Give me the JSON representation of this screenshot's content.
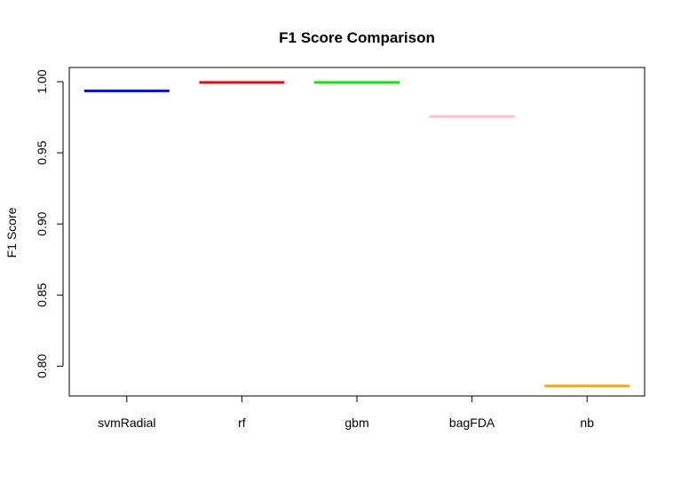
{
  "chart_data": {
    "type": "line",
    "title": "F1 Score Comparison",
    "xlabel": "",
    "ylabel": "F1 Score",
    "categories": [
      "svmRadial",
      "rf",
      "gbm",
      "bagFDA",
      "nb"
    ],
    "values": [
      0.9935,
      0.9995,
      0.9995,
      0.9755,
      0.786
    ],
    "colors": [
      "#0000ff",
      "#ff0000",
      "#00ee00",
      "#ffc0cb",
      "#ffa500"
    ],
    "ylim": [
      0.779,
      1.01
    ],
    "yticks": [
      0.8,
      0.85,
      0.9,
      0.95,
      1.0
    ],
    "ytick_labels": [
      "0.80",
      "0.85",
      "0.90",
      "0.95",
      "1.00"
    ],
    "grid": false,
    "legend": "none"
  }
}
